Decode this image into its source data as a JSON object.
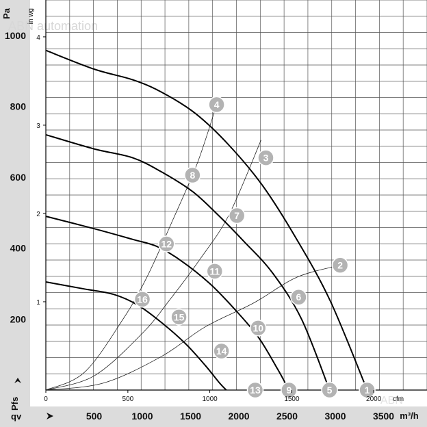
{
  "watermark": "ABN automation",
  "watermark_bottom": "ABN",
  "chart_data": {
    "type": "line",
    "title": "",
    "y_primary": {
      "unit": "Pa",
      "ticks": [
        200,
        400,
        600,
        800,
        1000
      ],
      "range": [
        0,
        1100
      ]
    },
    "y_secondary": {
      "unit": "in wg",
      "ticks": [
        "1",
        "2",
        "3",
        "4"
      ],
      "values": [
        249,
        498,
        747,
        996
      ]
    },
    "x_primary": {
      "unit": "m³/h",
      "ticks": [
        500,
        1000,
        1500,
        2000,
        2500,
        3000,
        3500
      ],
      "range": [
        0,
        3950
      ]
    },
    "x_secondary": {
      "unit": "cfm",
      "ticks": [
        "0",
        "500",
        "1000",
        "1500",
        "2000"
      ],
      "values": [
        0,
        850,
        1699,
        2549,
        3398
      ]
    },
    "x_label": "qv",
    "y_label": "Pfs",
    "grid": true,
    "series": [
      {
        "id": "curve-a",
        "points": [
          [
            0,
            958
          ],
          [
            500,
            905
          ],
          [
            900,
            875
          ],
          [
            1200,
            840
          ],
          [
            1550,
            780
          ],
          [
            1900,
            690
          ],
          [
            2250,
            575
          ],
          [
            2600,
            425
          ],
          [
            2950,
            250
          ],
          [
            3330,
            0
          ]
        ]
      },
      {
        "id": "curve-b",
        "points": [
          [
            0,
            720
          ],
          [
            500,
            680
          ],
          [
            900,
            655
          ],
          [
            1200,
            615
          ],
          [
            1520,
            560
          ],
          [
            1780,
            495
          ],
          [
            2050,
            420
          ],
          [
            2350,
            330
          ],
          [
            2650,
            200
          ],
          [
            2940,
            0
          ]
        ]
      },
      {
        "id": "curve-c",
        "points": [
          [
            0,
            490
          ],
          [
            500,
            455
          ],
          [
            900,
            425
          ],
          [
            1150,
            405
          ],
          [
            1400,
            365
          ],
          [
            1700,
            300
          ],
          [
            1950,
            230
          ],
          [
            2200,
            150
          ],
          [
            2400,
            60
          ],
          [
            2520,
            0
          ]
        ]
      },
      {
        "id": "curve-d",
        "points": [
          [
            0,
            305
          ],
          [
            400,
            285
          ],
          [
            700,
            270
          ],
          [
            950,
            240
          ],
          [
            1200,
            190
          ],
          [
            1450,
            130
          ],
          [
            1650,
            70
          ],
          [
            1800,
            20
          ],
          [
            1870,
            0
          ]
        ]
      }
    ],
    "system_curves": [
      {
        "id": "sys-1",
        "points": [
          [
            0,
            0
          ],
          [
            600,
            20
          ],
          [
            1200,
            95
          ],
          [
            1650,
            178
          ],
          [
            2150,
            245
          ],
          [
            2600,
            318
          ],
          [
            3050,
            352
          ]
        ]
      },
      {
        "id": "sys-2",
        "points": [
          [
            0,
            0
          ],
          [
            500,
            40
          ],
          [
            1000,
            160
          ],
          [
            1300,
            260
          ],
          [
            1600,
            370
          ],
          [
            1900,
            495
          ],
          [
            2230,
            705
          ]
        ]
      },
      {
        "id": "sys-3",
        "points": [
          [
            0,
            0
          ],
          [
            400,
            50
          ],
          [
            800,
            200
          ],
          [
            1050,
            320
          ],
          [
            1300,
            470
          ],
          [
            1570,
            640
          ],
          [
            1770,
            805
          ]
        ]
      }
    ],
    "operating_points": [
      {
        "label": "1",
        "x": 3330,
        "y": 0
      },
      {
        "label": "2",
        "x": 3050,
        "y": 352
      },
      {
        "label": "3",
        "x": 2280,
        "y": 655
      },
      {
        "label": "4",
        "x": 1770,
        "y": 805
      },
      {
        "label": "5",
        "x": 2940,
        "y": 0
      },
      {
        "label": "6",
        "x": 2620,
        "y": 262
      },
      {
        "label": "7",
        "x": 1980,
        "y": 492
      },
      {
        "label": "8",
        "x": 1520,
        "y": 606
      },
      {
        "label": "9",
        "x": 2520,
        "y": 0
      },
      {
        "label": "10",
        "x": 2200,
        "y": 175
      },
      {
        "label": "11",
        "x": 1750,
        "y": 335
      },
      {
        "label": "12",
        "x": 1250,
        "y": 412
      },
      {
        "label": "13",
        "x": 2170,
        "y": 0
      },
      {
        "label": "14",
        "x": 1820,
        "y": 110
      },
      {
        "label": "15",
        "x": 1380,
        "y": 206
      },
      {
        "label": "16",
        "x": 1000,
        "y": 256
      }
    ],
    "colors": {
      "band": "#dcdcdc",
      "grid": "#555555",
      "curve": "#000000",
      "marker_fill": "#b3b3b3",
      "marker_text": "#ffffff"
    }
  }
}
